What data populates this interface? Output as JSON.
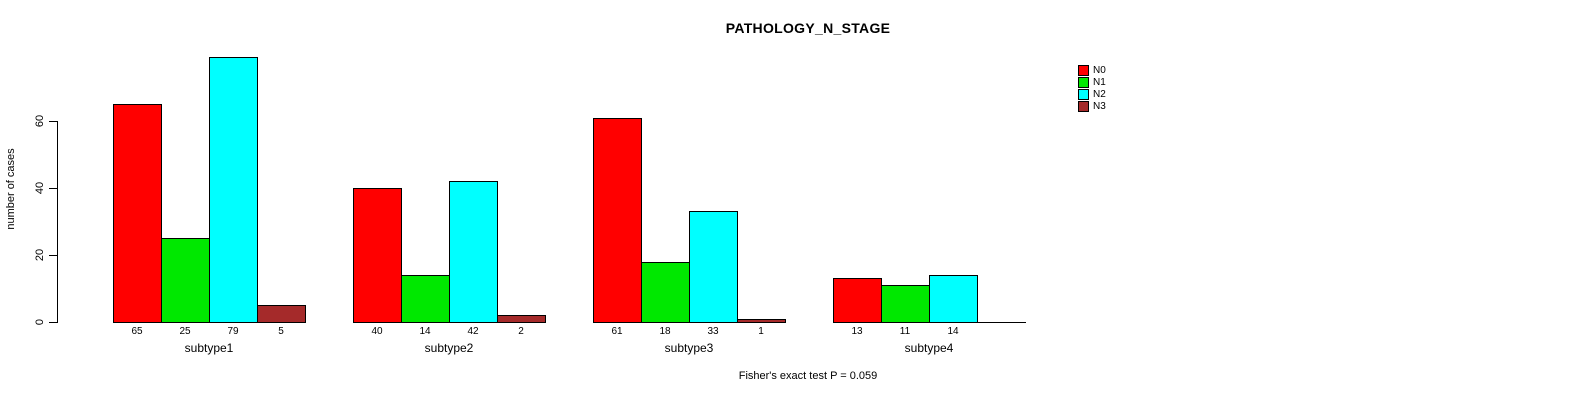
{
  "chart_data": {
    "type": "bar",
    "title": "PATHOLOGY_N_STAGE",
    "xlabel": "",
    "ylabel": "number of cases",
    "categories": [
      "subtype1",
      "subtype2",
      "subtype3",
      "subtype4"
    ],
    "series": [
      {
        "name": "N0",
        "color": "#ff0000",
        "values": [
          65,
          40,
          61,
          13
        ]
      },
      {
        "name": "N1",
        "color": "#00e800",
        "values": [
          25,
          14,
          18,
          11
        ]
      },
      {
        "name": "N2",
        "color": "#00ffff",
        "values": [
          79,
          42,
          33,
          14
        ]
      },
      {
        "name": "N3",
        "color": "#a52a2a",
        "values": [
          5,
          2,
          1,
          0
        ]
      }
    ],
    "yticks": [
      0,
      20,
      40,
      60
    ],
    "ylim": [
      0,
      80
    ],
    "grid": false,
    "bar_value_labels_shown": true,
    "zero_value_labels_hidden": true,
    "legend_position": "top-right",
    "annotation": "Fisher's exact test P = 0.059"
  }
}
